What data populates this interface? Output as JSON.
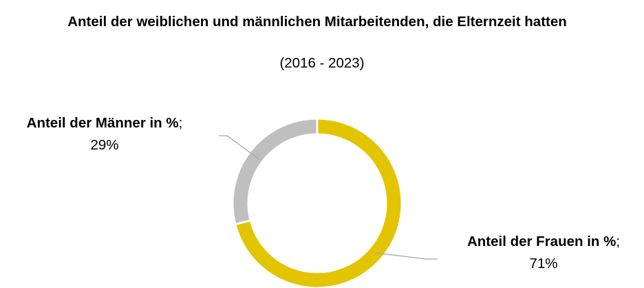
{
  "chart_data": {
    "type": "pie",
    "donut": true,
    "title": "Anteil der weiblichen und männlichen Mitarbeitenden, die Elternzeit hatten",
    "subtitle": "(2016 - 2023)",
    "categories": [
      "Anteil der Frauen in %",
      "Anteil der Männer in %"
    ],
    "values": [
      71,
      29
    ],
    "value_labels": [
      "71%",
      "29%"
    ],
    "label_separator": ";",
    "colors": [
      "#e2c400",
      "#bfbfbf"
    ]
  }
}
